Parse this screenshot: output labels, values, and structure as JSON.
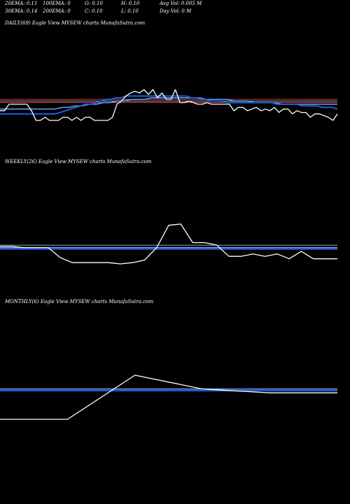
{
  "header": {
    "ema20": "20EMA: 0.11",
    "ema100": "100EMA: 0",
    "open": "O: 0.10",
    "high": "H: 0.10",
    "avg_vol": "Avg Vol: 0.005 M",
    "ema30": "30EMA: 0.14",
    "ema200": "200EMA: 0",
    "close": "C: 0.10",
    "low": "L: 0.10",
    "day_vol": "Day Vol: 0  M"
  },
  "colors": {
    "background": "#000000",
    "price": "#ffffff",
    "ema_fast": "#1f5fe0",
    "ema_line": "#6fa0ff",
    "ref_red": "#d04040",
    "ref_grey": "#a0a0a0"
  },
  "chart_data": [
    {
      "type": "line",
      "title": "DAILY(69) Eagle  View  MYSEW charts MunafaSutra.com",
      "price": [
        0.0952,
        0.0952,
        0.0987,
        0.0987,
        0.0987,
        0.0987,
        0.0987,
        0.0952,
        0.09,
        0.09,
        0.0917,
        0.09,
        0.09,
        0.09,
        0.0917,
        0.0917,
        0.09,
        0.0917,
        0.09,
        0.0917,
        0.0917,
        0.09,
        0.09,
        0.09,
        0.09,
        0.0917,
        0.0987,
        0.1004,
        0.1031,
        0.1048,
        0.1057,
        0.1048,
        0.1066,
        0.104,
        0.1066,
        0.1022,
        0.1048,
        0.1013,
        0.1013,
        0.1066,
        0.0996,
        0.0996,
        0.1004,
        0.0996,
        0.0987,
        0.0987,
        0.0996,
        0.0987,
        0.0987,
        0.0987,
        0.0987,
        0.0987,
        0.0952,
        0.097,
        0.097,
        0.0952,
        0.0961,
        0.097,
        0.0952,
        0.0961,
        0.0952,
        0.097,
        0.0943,
        0.0961,
        0.0961,
        0.0935,
        0.0952,
        0.0943,
        0.0943,
        0.0917,
        0.0935,
        0.0935,
        0.0926,
        0.0917,
        0.09,
        0.0935
      ],
      "ema": [
        0.0935,
        0.0935,
        0.0935,
        0.0935,
        0.0935,
        0.0935,
        0.0935,
        0.0935,
        0.0935,
        0.0935,
        0.0935,
        0.0935,
        0.0943,
        0.0952,
        0.0961,
        0.097,
        0.0978,
        0.0987,
        0.0987,
        0.0996,
        0.1004,
        0.1013,
        0.1013,
        0.1022,
        0.1022,
        0.1031,
        0.1031,
        0.1031,
        0.1031,
        0.1031,
        0.1031,
        0.1031,
        0.1031,
        0.1031,
        0.1031,
        0.1031,
        0.1031,
        0.1031,
        0.1022,
        0.1022,
        0.1013,
        0.1013,
        0.1004,
        0.1004,
        0.1004,
        0.0996,
        0.0996,
        0.0996,
        0.0996,
        0.0996,
        0.0996,
        0.0996,
        0.0996,
        0.0996,
        0.0996,
        0.0987,
        0.0987,
        0.0987,
        0.0987,
        0.0987,
        0.0978,
        0.0978,
        0.0978,
        0.0978,
        0.097,
        0.097,
        0.097,
        0.0961
      ],
      "ema2": [
        0.0961,
        0.0961,
        0.0961,
        0.0961,
        0.0961,
        0.0961,
        0.0961,
        0.0961,
        0.0961,
        0.097,
        0.097,
        0.0978,
        0.0978,
        0.0987,
        0.0987,
        0.0996,
        0.0996,
        0.1004,
        0.1004,
        0.1013,
        0.1013,
        0.1013,
        0.1022,
        0.1022,
        0.1022,
        0.1022,
        0.1022,
        0.1022,
        0.1022,
        0.1022,
        0.1013,
        0.1013,
        0.1013,
        0.1013,
        0.1004,
        0.1004,
        0.1004,
        0.0996,
        0.0996,
        0.0996,
        0.0996,
        0.0987,
        0.0987,
        0.0987,
        0.0987,
        0.0987,
        0.0987,
        0.0987,
        0.0987,
        0.0987
      ],
      "ref_red": [
        0.1013,
        0.0996
      ],
      "ref_grey": 0.1004
    },
    {
      "type": "line",
      "title": "WEEKLY(26) Eagle  View  MYSEW charts MunafaSutra.com",
      "price": [
        0.0991,
        0.0991,
        0.0981,
        0.0981,
        0.0981,
        0.0901,
        0.086,
        0.086,
        0.086,
        0.086,
        0.085,
        0.086,
        0.0881,
        0.0981,
        0.1162,
        0.1172,
        0.1022,
        0.1022,
        0.1001,
        0.0911,
        0.0911,
        0.0931,
        0.0911,
        0.0931,
        0.0891,
        0.0951,
        0.0891,
        0.0891,
        0.0891
      ],
      "ema": 0.097,
      "ema2": 0.0981,
      "ref_grey": 0.1001
    },
    {
      "type": "line",
      "title": "MONTHLY(6) Eagle  View  MYSEW charts MunafaSutra.com",
      "price": [
        0.0895,
        0.0895,
        0.11,
        0.1036,
        0.1018,
        0.1018
      ],
      "ema": 0.1028,
      "ema2": 0.1036
    }
  ]
}
